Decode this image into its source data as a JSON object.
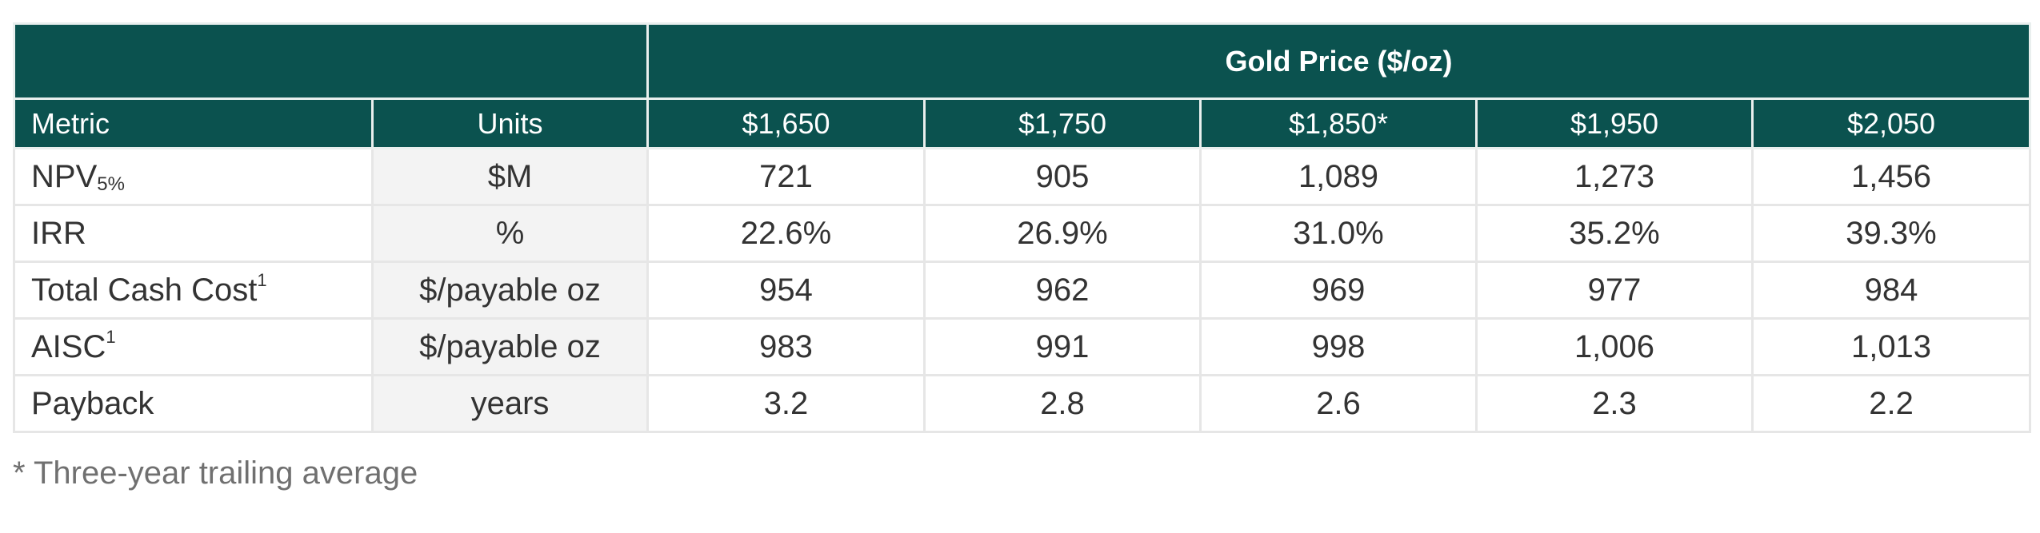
{
  "header": {
    "group_label": "Gold Price ($/oz)",
    "metric_label": "Metric",
    "units_label": "Units",
    "prices": [
      "$1,650",
      "$1,750",
      "$1,850*",
      "$1,950",
      "$2,050"
    ]
  },
  "rows": [
    {
      "metric": "NPV",
      "metric_sub": "5%",
      "metric_sup": "",
      "units": "$M",
      "values": [
        "721",
        "905",
        "1,089",
        "1,273",
        "1,456"
      ]
    },
    {
      "metric": "IRR",
      "metric_sub": "",
      "metric_sup": "",
      "units": "%",
      "values": [
        "22.6%",
        "26.9%",
        "31.0%",
        "35.2%",
        "39.3%"
      ]
    },
    {
      "metric": "Total Cash Cost",
      "metric_sub": "",
      "metric_sup": "1",
      "units": "$/payable oz",
      "values": [
        "954",
        "962",
        "969",
        "977",
        "984"
      ]
    },
    {
      "metric": "AISC",
      "metric_sub": "",
      "metric_sup": "1",
      "units": "$/payable oz",
      "values": [
        "983",
        "991",
        "998",
        "1,006",
        "1,013"
      ]
    },
    {
      "metric": "Payback",
      "metric_sub": "",
      "metric_sup": "",
      "units": "years",
      "values": [
        "3.2",
        "2.8",
        "2.6",
        "2.3",
        "2.2"
      ]
    }
  ],
  "footnote": "* Three-year trailing average",
  "colors": {
    "header_bg": "#0b524f",
    "header_text": "#ffffff",
    "units_bg": "#f3f3f3",
    "border": "#e6e6e6"
  }
}
